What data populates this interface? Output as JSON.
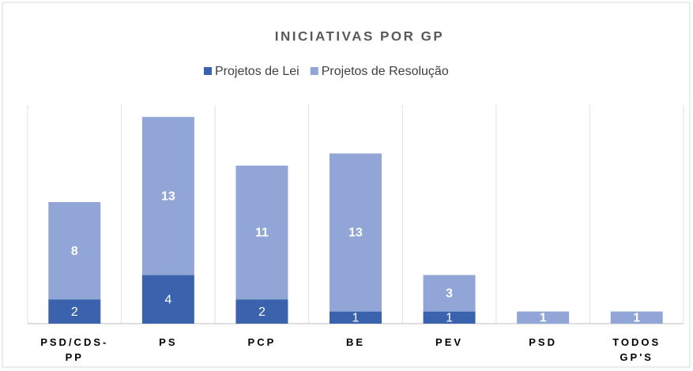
{
  "chart_data": {
    "type": "stacked_bar",
    "title": "INICIATIVAS POR GP",
    "categories": [
      "PSD/CDS-PP",
      "PS",
      "PCP",
      "BE",
      "PEV",
      "PSD",
      "TODOS GP'S"
    ],
    "series": [
      {
        "name": "Projetos de Lei",
        "color": "#3a62ad",
        "values": [
          2,
          4,
          2,
          1,
          1,
          0,
          0
        ]
      },
      {
        "name": "Projetos de Resolução",
        "color": "#91a6d6",
        "values": [
          8,
          13,
          11,
          13,
          3,
          1,
          1
        ]
      }
    ],
    "legend": "top",
    "grid": true
  }
}
